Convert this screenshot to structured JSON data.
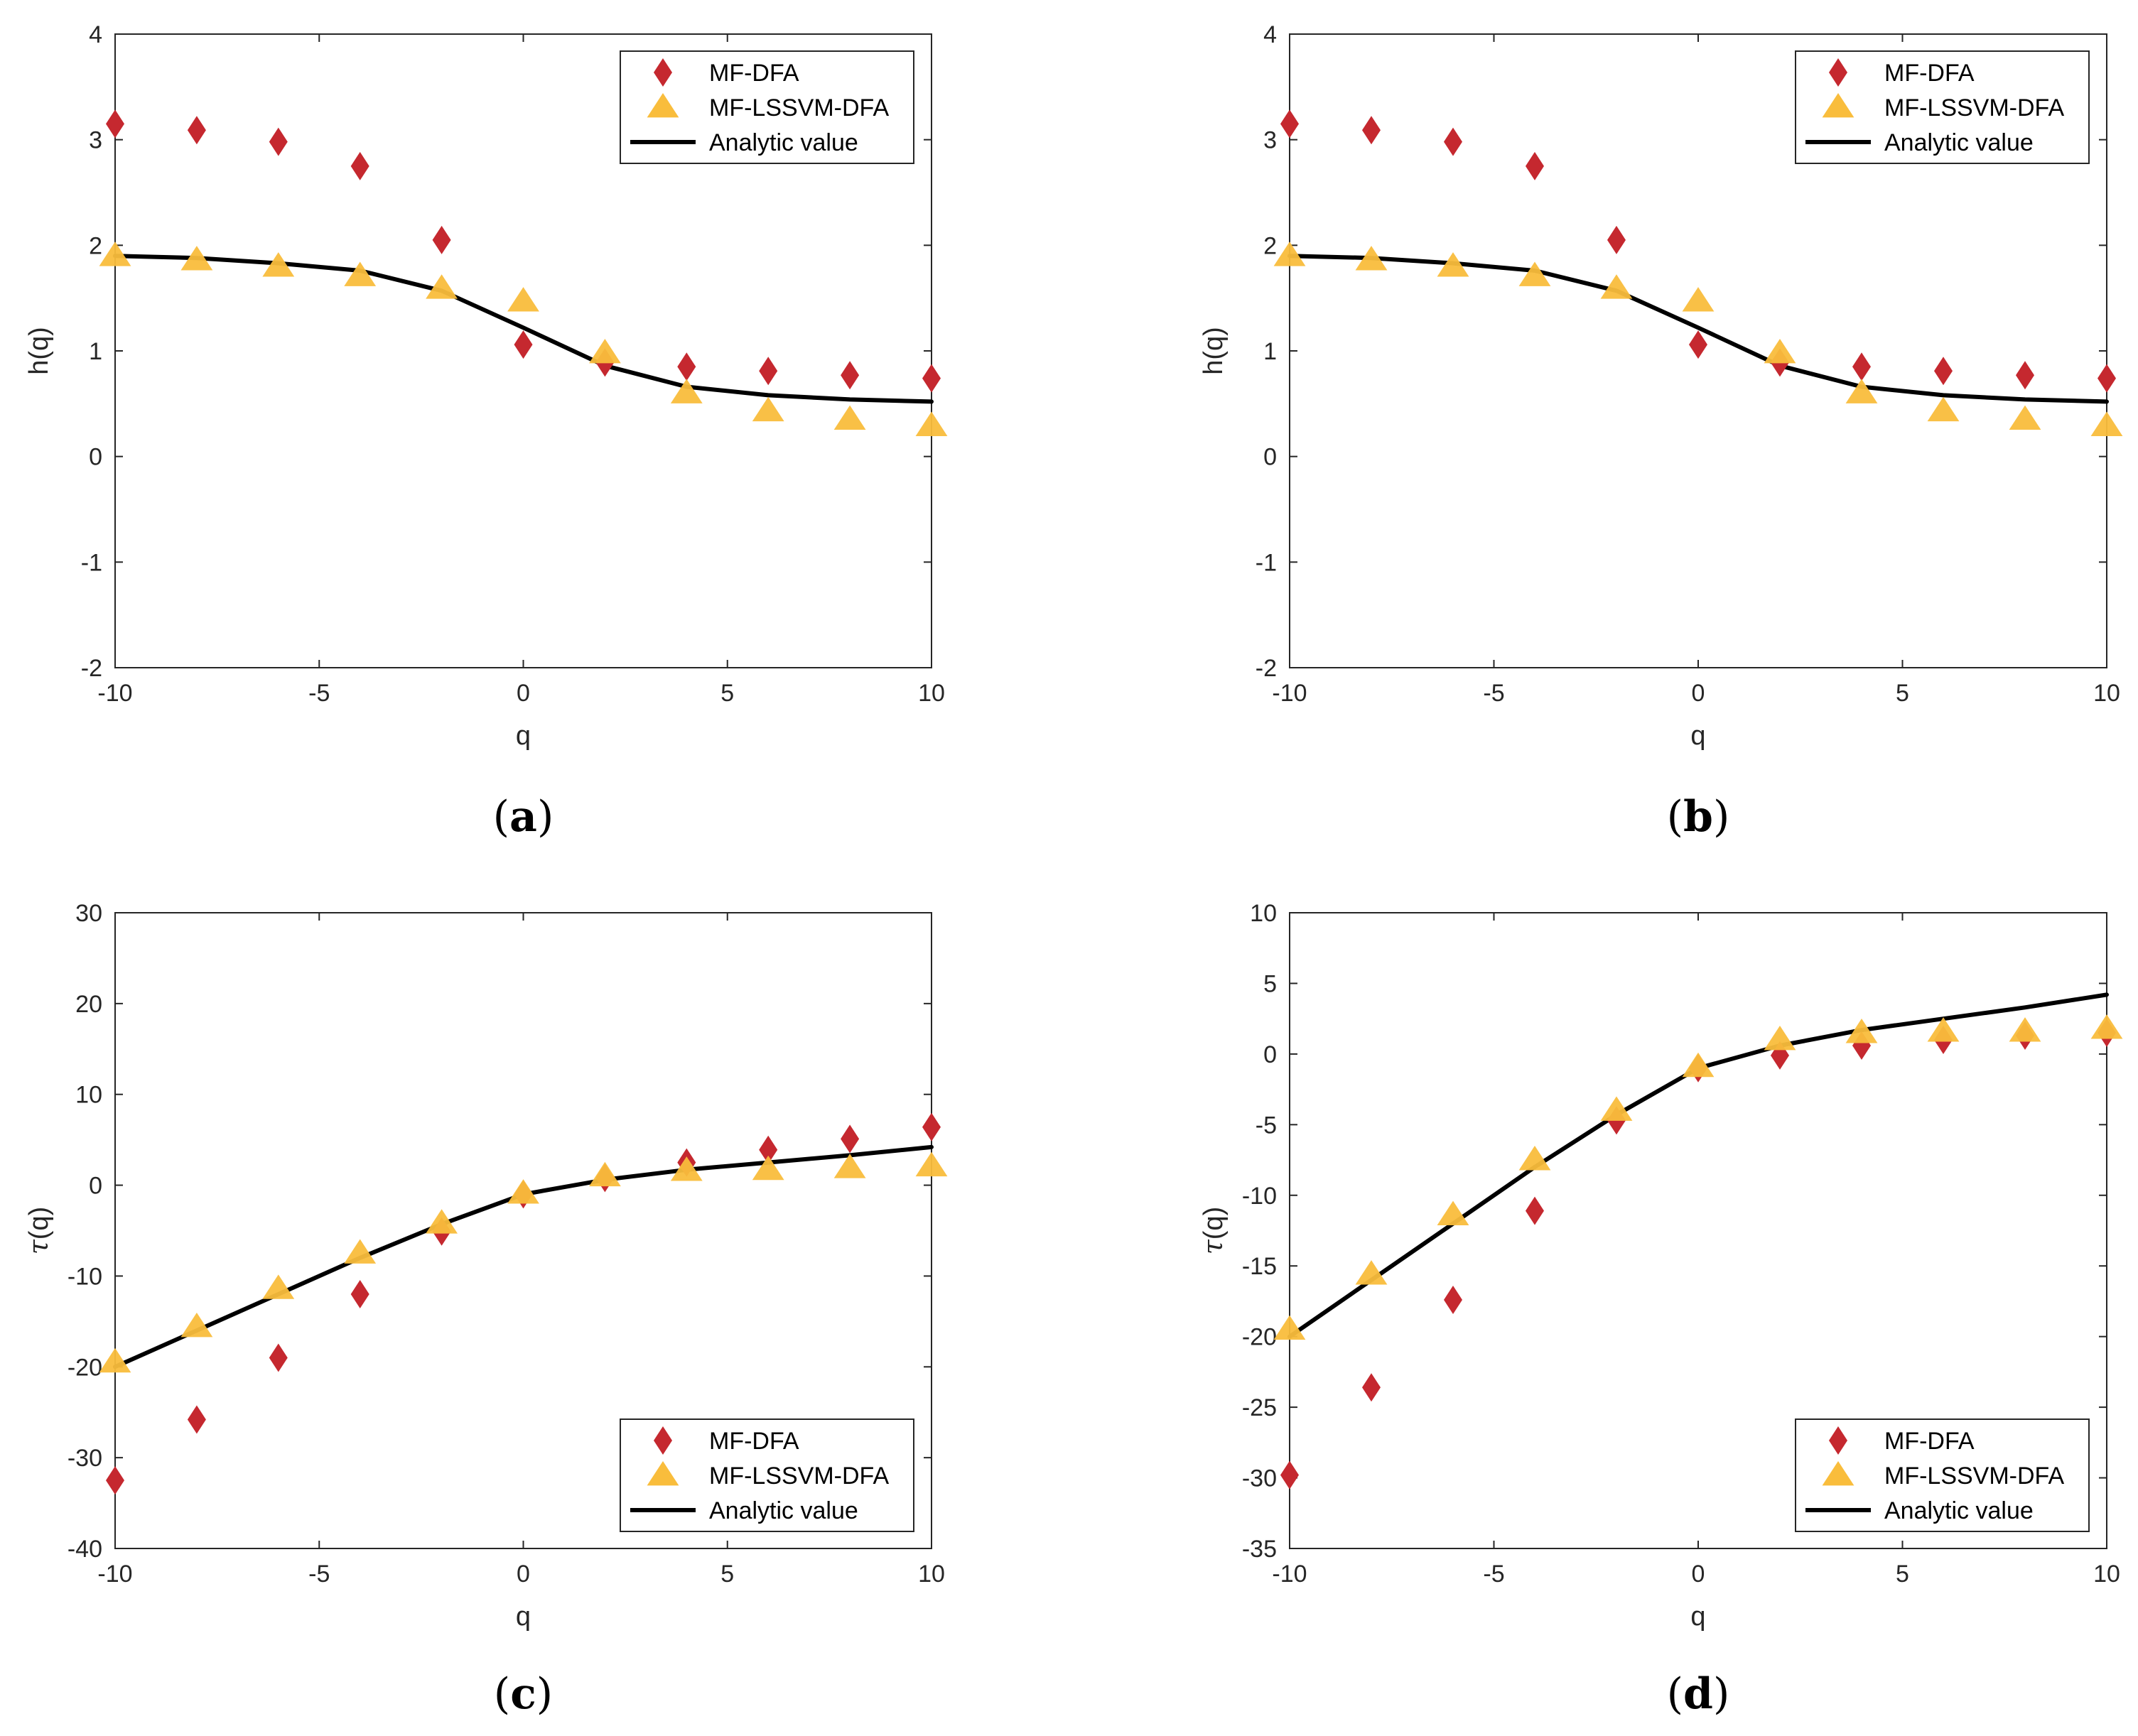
{
  "colors": {
    "mfdfa": "#c5282f",
    "lssvm": "#f9bd3c",
    "analytic": "#000000",
    "axis": "#262626"
  },
  "chart_data": [
    {
      "type": "scatter",
      "caption": "(a)",
      "caption_letter": "a",
      "xlabel": "q",
      "ylabel": "h(q)",
      "xlim": [
        -10,
        10
      ],
      "ylim": [
        -2,
        4
      ],
      "xticks": [
        -10,
        -5,
        0,
        5,
        10
      ],
      "xtick_labels": [
        "-10",
        "-5",
        "0",
        "5",
        "10"
      ],
      "yticks": [
        -2,
        -1,
        0,
        1,
        2,
        3,
        4
      ],
      "ytick_labels": [
        "-2",
        "-1",
        "0",
        "1",
        "2",
        "3",
        "4"
      ],
      "legend_position": "top-right",
      "x": [
        -10,
        -8,
        -6,
        -4,
        -2,
        0,
        2,
        4,
        6,
        8,
        10
      ],
      "series": [
        {
          "name": "MF-DFA",
          "kind": "diamond",
          "values": [
            3.15,
            3.09,
            2.98,
            2.75,
            2.05,
            1.06,
            0.89,
            0.85,
            0.81,
            0.77,
            0.74
          ]
        },
        {
          "name": "MF-LSSVM-DFA",
          "kind": "triangle",
          "values": [
            1.9,
            1.86,
            1.8,
            1.71,
            1.59,
            1.47,
            0.98,
            0.6,
            0.43,
            0.35,
            0.29
          ]
        },
        {
          "name": "Analytic value",
          "kind": "line",
          "values": [
            1.9,
            1.88,
            1.83,
            1.76,
            1.57,
            1.22,
            0.86,
            0.66,
            0.58,
            0.54,
            0.52
          ]
        }
      ]
    },
    {
      "type": "scatter",
      "caption": "(b)",
      "caption_letter": "b",
      "xlabel": "q",
      "ylabel": "h(q)",
      "xlim": [
        -10,
        10
      ],
      "ylim": [
        -2,
        4
      ],
      "xticks": [
        -10,
        -5,
        0,
        5,
        10
      ],
      "xtick_labels": [
        "-10",
        "-5",
        "0",
        "5",
        "10"
      ],
      "yticks": [
        -2,
        -1,
        0,
        1,
        2,
        3,
        4
      ],
      "ytick_labels": [
        "-2",
        "-1",
        "0",
        "1",
        "2",
        "3",
        "4"
      ],
      "legend_position": "top-right",
      "x": [
        -10,
        -8,
        -6,
        -4,
        -2,
        0,
        2,
        4,
        6,
        8,
        10
      ],
      "series": [
        {
          "name": "MF-DFA",
          "kind": "diamond",
          "values": [
            3.15,
            3.09,
            2.98,
            2.75,
            2.05,
            1.06,
            0.89,
            0.85,
            0.81,
            0.77,
            0.74
          ]
        },
        {
          "name": "MF-LSSVM-DFA",
          "kind": "triangle",
          "values": [
            1.9,
            1.86,
            1.8,
            1.71,
            1.59,
            1.47,
            0.98,
            0.6,
            0.43,
            0.35,
            0.29
          ]
        },
        {
          "name": "Analytic value",
          "kind": "line",
          "values": [
            1.9,
            1.88,
            1.83,
            1.76,
            1.57,
            1.22,
            0.86,
            0.66,
            0.58,
            0.54,
            0.52
          ]
        }
      ]
    },
    {
      "type": "scatter",
      "caption": "(c)",
      "caption_letter": "c",
      "xlabel": "q",
      "ylabel": "τ(q)",
      "xlim": [
        -10,
        10
      ],
      "ylim": [
        -40,
        30
      ],
      "xticks": [
        -10,
        -5,
        0,
        5,
        10
      ],
      "xtick_labels": [
        "-10",
        "-5",
        "0",
        "5",
        "10"
      ],
      "yticks": [
        -40,
        -30,
        -20,
        -10,
        0,
        10,
        20,
        30
      ],
      "ytick_labels": [
        "-40",
        "-30",
        "-20",
        "-10",
        "0",
        "10",
        "20",
        "30"
      ],
      "legend_position": "bottom-right",
      "x": [
        -10,
        -8,
        -6,
        -4,
        -2,
        0,
        2,
        4,
        6,
        8,
        10
      ],
      "series": [
        {
          "name": "MF-DFA",
          "kind": "diamond",
          "values": [
            -32.5,
            -25.8,
            -19.0,
            -12.0,
            -5.1,
            -1.0,
            0.8,
            2.5,
            3.9,
            5.1,
            6.4
          ]
        },
        {
          "name": "MF-LSSVM-DFA",
          "kind": "triangle",
          "values": [
            -19.5,
            -15.6,
            -11.4,
            -7.5,
            -4.2,
            -0.9,
            1.0,
            1.6,
            1.7,
            1.9,
            2.1
          ]
        },
        {
          "name": "Analytic value",
          "kind": "line",
          "values": [
            -20.0,
            -16.0,
            -12.0,
            -8.0,
            -4.3,
            -1.0,
            0.6,
            1.7,
            2.5,
            3.3,
            4.2
          ]
        }
      ]
    },
    {
      "type": "scatter",
      "caption": "(d)",
      "caption_letter": "d",
      "xlabel": "q",
      "ylabel": "τ(q)",
      "xlim": [
        -10,
        10
      ],
      "ylim": [
        -35,
        10
      ],
      "xticks": [
        -10,
        -5,
        0,
        5,
        10
      ],
      "xtick_labels": [
        "-10",
        "-5",
        "0",
        "5",
        "10"
      ],
      "yticks": [
        -35,
        -30,
        -25,
        -20,
        -15,
        -10,
        -5,
        0,
        5,
        10
      ],
      "ytick_labels": [
        "-35",
        "-30",
        "-25",
        "-20",
        "-15",
        "-10",
        "-5",
        "0",
        "5",
        "10"
      ],
      "legend_position": "bottom-right",
      "x": [
        -10,
        -8,
        -6,
        -4,
        -2,
        0,
        2,
        4,
        6,
        8,
        10
      ],
      "series": [
        {
          "name": "MF-DFA",
          "kind": "diamond",
          "values": [
            -29.8,
            -23.6,
            -17.4,
            -11.1,
            -4.7,
            -1.0,
            -0.1,
            0.6,
            1.0,
            1.3,
            1.5
          ]
        },
        {
          "name": "MF-LSSVM-DFA",
          "kind": "triangle",
          "values": [
            -19.5,
            -15.6,
            -11.4,
            -7.5,
            -4.0,
            -0.9,
            1.0,
            1.5,
            1.6,
            1.6,
            1.8
          ]
        },
        {
          "name": "Analytic value",
          "kind": "line",
          "values": [
            -20.0,
            -16.0,
            -12.0,
            -8.0,
            -4.3,
            -1.0,
            0.6,
            1.7,
            2.5,
            3.3,
            4.2
          ]
        }
      ]
    }
  ]
}
